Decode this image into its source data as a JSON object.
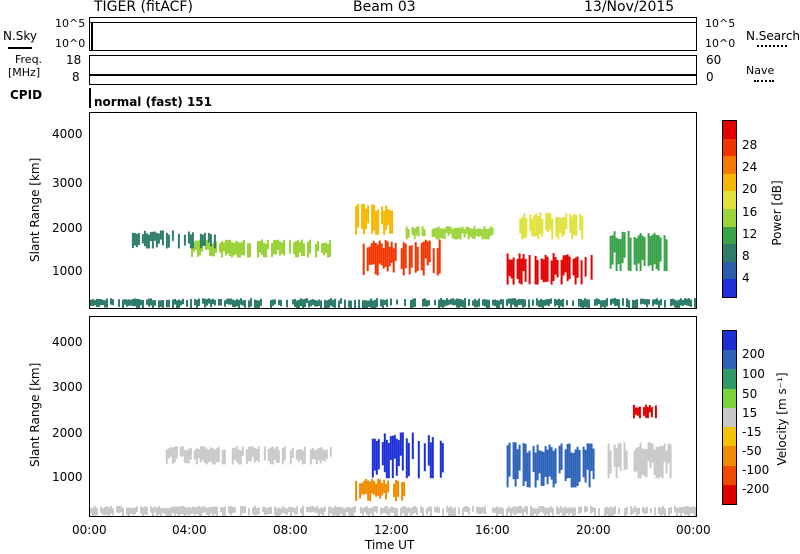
{
  "header": {
    "station": "TIGER (fitACF)",
    "beam": "Beam 03",
    "date": "13/Nov/2015"
  },
  "panels": {
    "nsky": {
      "left_label": "N.Sky",
      "left_ticks": [
        "10^5",
        "10^0"
      ],
      "right_label": "N.Search",
      "right_ticks": [
        "10^5",
        "10^0"
      ]
    },
    "freq": {
      "left_label_1": "Freq.",
      "left_label_2": "[MHz]",
      "left_ticks": [
        "18",
        "8"
      ],
      "right_label": "Nave",
      "right_ticks": [
        "60",
        "0"
      ]
    },
    "cpid": {
      "label": "CPID",
      "text": "normal (fast) 151"
    }
  },
  "power_panel": {
    "ylabel": "Slant Range [km]",
    "yticks": [
      "4000",
      "3000",
      "2000",
      "1000"
    ],
    "colorbar_label": "Power [dB]",
    "colorbar_ticks": [
      "28",
      "24",
      "20",
      "16",
      "12",
      "8",
      "4"
    ],
    "colorbar_colors": [
      "#e30000",
      "#f23400",
      "#f27a00",
      "#f5b800",
      "#dfe23a",
      "#9ad43a",
      "#3aa34a",
      "#2e7d6a",
      "#2a5ea8",
      "#1d2fd9"
    ]
  },
  "velocity_panel": {
    "ylabel": "Slant Range [km]",
    "yticks": [
      "4000",
      "3000",
      "2000",
      "1000"
    ],
    "colorbar_label": "Velocity [m s⁻¹]",
    "colorbar_ticks": [
      "200",
      "100",
      "50",
      "15",
      "-15",
      "-50",
      "-100",
      "-200"
    ],
    "colorbar_colors": [
      "#1c2fd6",
      "#2d63b8",
      "#2f9a68",
      "#7ed23b",
      "#c8c8c8",
      "#f2c400",
      "#f08a00",
      "#ee4a00",
      "#e00000"
    ]
  },
  "xaxis": {
    "label": "Time UT",
    "ticks": [
      "00:00",
      "04:00",
      "08:00",
      "12:00",
      "16:00",
      "20:00",
      "00:00"
    ]
  },
  "chart_data": [
    {
      "type": "heatmap",
      "title": "Power [dB]",
      "xlabel": "Time UT",
      "ylabel": "Slant Range [km]",
      "xlim": [
        "00:00",
        "24:00"
      ],
      "ylim": [
        180,
        4500
      ],
      "color_scale": [
        0,
        30
      ],
      "regions": [
        {
          "t0": 4.0,
          "t1": 9.5,
          "r0": 1300,
          "r1": 1700,
          "value": 14
        },
        {
          "t0": 1.5,
          "t1": 5.0,
          "r0": 1500,
          "r1": 1900,
          "value": 8
        },
        {
          "t0": 10.8,
          "t1": 14.0,
          "r0": 900,
          "r1": 1700,
          "value": 24
        },
        {
          "t0": 10.5,
          "t1": 12.0,
          "r0": 1800,
          "r1": 2500,
          "value": 18
        },
        {
          "t0": 12.5,
          "t1": 16.0,
          "r0": 1700,
          "r1": 2000,
          "value": 12
        },
        {
          "t0": 16.5,
          "t1": 20.0,
          "r0": 700,
          "r1": 1400,
          "value": 28
        },
        {
          "t0": 17.0,
          "t1": 19.5,
          "r0": 1700,
          "r1": 2300,
          "value": 16
        },
        {
          "t0": 20.5,
          "t1": 23.0,
          "r0": 1000,
          "r1": 1900,
          "value": 10
        },
        {
          "t0": 0.0,
          "t1": 24.0,
          "r0": 180,
          "r1": 400,
          "value": 8
        }
      ]
    },
    {
      "type": "heatmap",
      "title": "Velocity [m s⁻¹]",
      "xlabel": "Time UT",
      "ylabel": "Slant Range [km]",
      "xlim": [
        "00:00",
        "24:00"
      ],
      "ylim": [
        180,
        4500
      ],
      "color_scale": [
        -200,
        200
      ],
      "regions": [
        {
          "t0": 3.0,
          "t1": 9.5,
          "r0": 1300,
          "r1": 1700,
          "value": 0
        },
        {
          "t0": 11.0,
          "t1": 14.0,
          "r0": 1000,
          "r1": 2000,
          "value": 200
        },
        {
          "t0": 10.5,
          "t1": 12.5,
          "r0": 500,
          "r1": 1000,
          "value": -80
        },
        {
          "t0": 16.5,
          "t1": 20.0,
          "r0": 800,
          "r1": 1800,
          "value": 150
        },
        {
          "t0": 20.5,
          "t1": 23.0,
          "r0": 1000,
          "r1": 1800,
          "value": 0
        },
        {
          "t0": 21.5,
          "t1": 22.5,
          "r0": 2300,
          "r1": 2600,
          "value": -200
        },
        {
          "t0": 0.0,
          "t1": 24.0,
          "r0": 180,
          "r1": 400,
          "value": 10
        }
      ]
    }
  ]
}
